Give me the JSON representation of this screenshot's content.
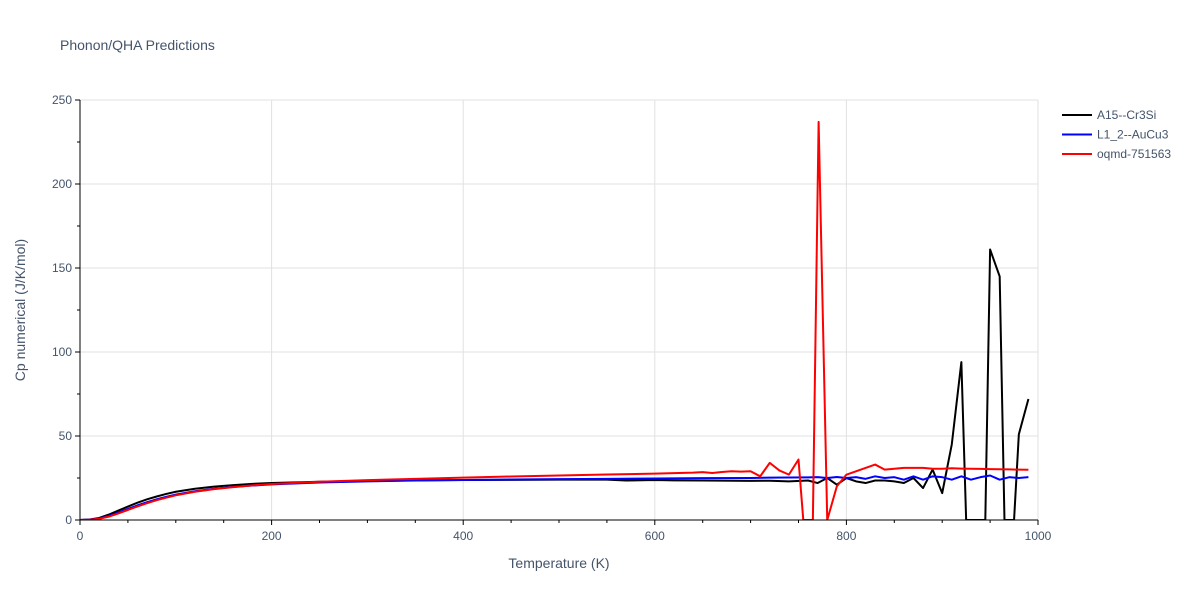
{
  "chart_data": {
    "type": "line",
    "title": "Phonon/QHA Predictions",
    "xlabel": "Temperature (K)",
    "ylabel": "Cp numerical (J/K/mol)",
    "xlim": [
      0,
      1000
    ],
    "ylim": [
      0,
      250
    ],
    "xticks": [
      0,
      200,
      400,
      600,
      800,
      1000
    ],
    "yticks": [
      0,
      50,
      100,
      150,
      200,
      250
    ],
    "grid": true,
    "legend_position": "top-right",
    "series": [
      {
        "name": "A15--Cr3Si",
        "color": "#000000",
        "x": [
          0,
          10,
          20,
          30,
          40,
          50,
          60,
          70,
          80,
          90,
          100,
          120,
          140,
          160,
          180,
          200,
          250,
          300,
          350,
          400,
          450,
          500,
          550,
          570,
          600,
          620,
          650,
          700,
          720,
          740,
          760,
          770,
          780,
          790,
          800,
          810,
          820,
          830,
          840,
          850,
          860,
          870,
          880,
          890,
          900,
          910,
          920,
          925,
          935,
          945,
          950,
          960,
          965,
          975,
          980,
          990
        ],
        "y": [
          0,
          0.3,
          1.2,
          3.2,
          5.6,
          8.0,
          10.3,
          12.3,
          14.0,
          15.5,
          16.8,
          18.6,
          19.9,
          20.8,
          21.5,
          22.0,
          22.8,
          23.3,
          23.6,
          23.8,
          23.9,
          24.0,
          24.0,
          23.5,
          23.8,
          23.6,
          23.5,
          23.3,
          23.4,
          23.0,
          23.5,
          22.0,
          25.0,
          21.0,
          25.0,
          23.0,
          22.0,
          23.5,
          23.5,
          23.0,
          22.0,
          25.0,
          19.0,
          30.0,
          16.0,
          45.0,
          94.0,
          0,
          0,
          0,
          161.0,
          145.0,
          0,
          0,
          51.0,
          72.0
        ]
      },
      {
        "name": "L1_2--AuCu3",
        "color": "#0000ff",
        "x": [
          0,
          10,
          20,
          30,
          40,
          50,
          60,
          70,
          80,
          90,
          100,
          120,
          140,
          160,
          180,
          200,
          250,
          300,
          350,
          400,
          450,
          500,
          550,
          600,
          650,
          700,
          720,
          740,
          760,
          770,
          780,
          790,
          800,
          810,
          820,
          830,
          840,
          850,
          860,
          870,
          880,
          890,
          900,
          910,
          920,
          930,
          940,
          950,
          960,
          970,
          980,
          990
        ],
        "y": [
          0,
          0.2,
          0.8,
          2.4,
          4.4,
          6.6,
          8.7,
          10.6,
          12.3,
          13.8,
          15.1,
          17.1,
          18.6,
          19.7,
          20.5,
          21.2,
          22.3,
          23.0,
          23.5,
          23.8,
          24.1,
          24.3,
          24.5,
          24.7,
          24.9,
          25.0,
          25.2,
          25.3,
          25.4,
          25.5,
          25.0,
          25.6,
          25.0,
          25.5,
          24.5,
          26.0,
          25.0,
          25.5,
          24.0,
          26.0,
          24.0,
          26.0,
          25.5,
          24.0,
          26.0,
          24.0,
          25.5,
          26.5,
          24.0,
          25.5,
          25.0,
          25.5
        ]
      },
      {
        "name": "oqmd-751563",
        "color": "#ff0000",
        "x": [
          0,
          10,
          20,
          30,
          40,
          50,
          60,
          70,
          80,
          90,
          100,
          120,
          140,
          160,
          180,
          200,
          250,
          300,
          350,
          400,
          450,
          500,
          550,
          600,
          640,
          650,
          660,
          670,
          680,
          690,
          700,
          710,
          720,
          730,
          740,
          750,
          755,
          765,
          771,
          780,
          790,
          800,
          810,
          820,
          830,
          840,
          850,
          860,
          870,
          880,
          890,
          900,
          910,
          920,
          930,
          940,
          950,
          960,
          970,
          980,
          990
        ],
        "y": [
          0,
          0.15,
          0.7,
          2.0,
          3.9,
          6.0,
          8.1,
          10.0,
          11.8,
          13.3,
          14.7,
          16.8,
          18.4,
          19.6,
          20.6,
          21.4,
          22.8,
          23.7,
          24.5,
          25.2,
          25.9,
          26.5,
          27.1,
          27.6,
          28.2,
          28.5,
          28.0,
          28.6,
          29.0,
          28.8,
          29.0,
          26.0,
          34.0,
          29.5,
          27.0,
          36.0,
          0,
          0,
          237.0,
          0,
          20.0,
          27.0,
          29.0,
          31.0,
          33.0,
          30.0,
          30.5,
          31.0,
          31.0,
          31.0,
          30.5,
          30.5,
          30.8,
          30.6,
          30.5,
          30.4,
          30.3,
          30.2,
          30.1,
          30.0,
          29.9
        ]
      }
    ]
  }
}
